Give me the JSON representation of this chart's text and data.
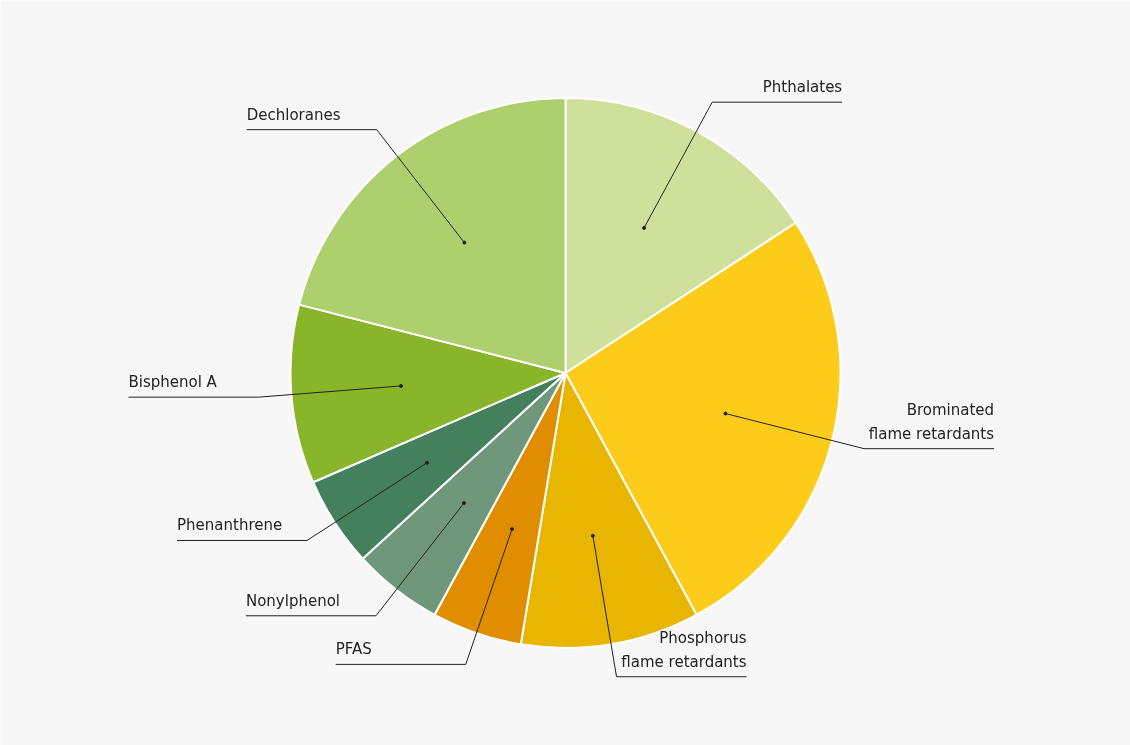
{
  "chart_data": {
    "type": "pie",
    "categories": [
      "Phthalates",
      "Brominated flame retardants",
      "Phosphorus flame retardants",
      "PFAS",
      "Nonylphenol",
      "Phenanthrene",
      "Bisphenol A",
      "Dechloranes"
    ],
    "values": [
      15.8,
      26.3,
      10.5,
      5.3,
      5.3,
      5.3,
      10.5,
      21.0
    ],
    "colors": [
      "#cfe09b",
      "#fdcc1b",
      "#e8b500",
      "#e08e00",
      "#6f977b",
      "#44805e",
      "#88b52a",
      "#aecf6e"
    ]
  }
}
